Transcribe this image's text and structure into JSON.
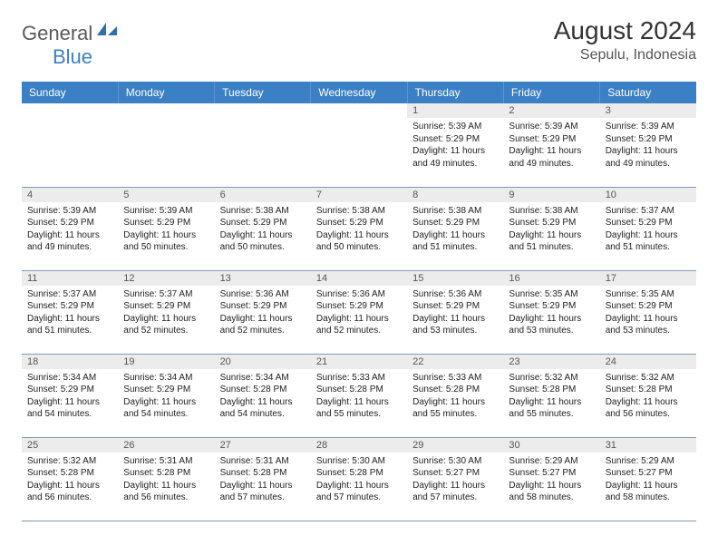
{
  "brand": {
    "part1": "General",
    "part2": "Blue"
  },
  "title": "August 2024",
  "location": "Sepulu, Indonesia",
  "colors": {
    "header_bg": "#3b7fc4",
    "header_text": "#ffffff",
    "daynum_bg": "#ececec",
    "row_border": "#7f99b5",
    "logo_gray": "#5a5a5a",
    "logo_blue": "#3b7fc4"
  },
  "weekdays": [
    "Sunday",
    "Monday",
    "Tuesday",
    "Wednesday",
    "Thursday",
    "Friday",
    "Saturday"
  ],
  "grid": [
    [
      {
        "n": "",
        "sr": "",
        "ss": "",
        "dl": ""
      },
      {
        "n": "",
        "sr": "",
        "ss": "",
        "dl": ""
      },
      {
        "n": "",
        "sr": "",
        "ss": "",
        "dl": ""
      },
      {
        "n": "",
        "sr": "",
        "ss": "",
        "dl": ""
      },
      {
        "n": "1",
        "sr": "Sunrise: 5:39 AM",
        "ss": "Sunset: 5:29 PM",
        "dl": "Daylight: 11 hours and 49 minutes."
      },
      {
        "n": "2",
        "sr": "Sunrise: 5:39 AM",
        "ss": "Sunset: 5:29 PM",
        "dl": "Daylight: 11 hours and 49 minutes."
      },
      {
        "n": "3",
        "sr": "Sunrise: 5:39 AM",
        "ss": "Sunset: 5:29 PM",
        "dl": "Daylight: 11 hours and 49 minutes."
      }
    ],
    [
      {
        "n": "4",
        "sr": "Sunrise: 5:39 AM",
        "ss": "Sunset: 5:29 PM",
        "dl": "Daylight: 11 hours and 49 minutes."
      },
      {
        "n": "5",
        "sr": "Sunrise: 5:39 AM",
        "ss": "Sunset: 5:29 PM",
        "dl": "Daylight: 11 hours and 50 minutes."
      },
      {
        "n": "6",
        "sr": "Sunrise: 5:38 AM",
        "ss": "Sunset: 5:29 PM",
        "dl": "Daylight: 11 hours and 50 minutes."
      },
      {
        "n": "7",
        "sr": "Sunrise: 5:38 AM",
        "ss": "Sunset: 5:29 PM",
        "dl": "Daylight: 11 hours and 50 minutes."
      },
      {
        "n": "8",
        "sr": "Sunrise: 5:38 AM",
        "ss": "Sunset: 5:29 PM",
        "dl": "Daylight: 11 hours and 51 minutes."
      },
      {
        "n": "9",
        "sr": "Sunrise: 5:38 AM",
        "ss": "Sunset: 5:29 PM",
        "dl": "Daylight: 11 hours and 51 minutes."
      },
      {
        "n": "10",
        "sr": "Sunrise: 5:37 AM",
        "ss": "Sunset: 5:29 PM",
        "dl": "Daylight: 11 hours and 51 minutes."
      }
    ],
    [
      {
        "n": "11",
        "sr": "Sunrise: 5:37 AM",
        "ss": "Sunset: 5:29 PM",
        "dl": "Daylight: 11 hours and 51 minutes."
      },
      {
        "n": "12",
        "sr": "Sunrise: 5:37 AM",
        "ss": "Sunset: 5:29 PM",
        "dl": "Daylight: 11 hours and 52 minutes."
      },
      {
        "n": "13",
        "sr": "Sunrise: 5:36 AM",
        "ss": "Sunset: 5:29 PM",
        "dl": "Daylight: 11 hours and 52 minutes."
      },
      {
        "n": "14",
        "sr": "Sunrise: 5:36 AM",
        "ss": "Sunset: 5:29 PM",
        "dl": "Daylight: 11 hours and 52 minutes."
      },
      {
        "n": "15",
        "sr": "Sunrise: 5:36 AM",
        "ss": "Sunset: 5:29 PM",
        "dl": "Daylight: 11 hours and 53 minutes."
      },
      {
        "n": "16",
        "sr": "Sunrise: 5:35 AM",
        "ss": "Sunset: 5:29 PM",
        "dl": "Daylight: 11 hours and 53 minutes."
      },
      {
        "n": "17",
        "sr": "Sunrise: 5:35 AM",
        "ss": "Sunset: 5:29 PM",
        "dl": "Daylight: 11 hours and 53 minutes."
      }
    ],
    [
      {
        "n": "18",
        "sr": "Sunrise: 5:34 AM",
        "ss": "Sunset: 5:29 PM",
        "dl": "Daylight: 11 hours and 54 minutes."
      },
      {
        "n": "19",
        "sr": "Sunrise: 5:34 AM",
        "ss": "Sunset: 5:29 PM",
        "dl": "Daylight: 11 hours and 54 minutes."
      },
      {
        "n": "20",
        "sr": "Sunrise: 5:34 AM",
        "ss": "Sunset: 5:28 PM",
        "dl": "Daylight: 11 hours and 54 minutes."
      },
      {
        "n": "21",
        "sr": "Sunrise: 5:33 AM",
        "ss": "Sunset: 5:28 PM",
        "dl": "Daylight: 11 hours and 55 minutes."
      },
      {
        "n": "22",
        "sr": "Sunrise: 5:33 AM",
        "ss": "Sunset: 5:28 PM",
        "dl": "Daylight: 11 hours and 55 minutes."
      },
      {
        "n": "23",
        "sr": "Sunrise: 5:32 AM",
        "ss": "Sunset: 5:28 PM",
        "dl": "Daylight: 11 hours and 55 minutes."
      },
      {
        "n": "24",
        "sr": "Sunrise: 5:32 AM",
        "ss": "Sunset: 5:28 PM",
        "dl": "Daylight: 11 hours and 56 minutes."
      }
    ],
    [
      {
        "n": "25",
        "sr": "Sunrise: 5:32 AM",
        "ss": "Sunset: 5:28 PM",
        "dl": "Daylight: 11 hours and 56 minutes."
      },
      {
        "n": "26",
        "sr": "Sunrise: 5:31 AM",
        "ss": "Sunset: 5:28 PM",
        "dl": "Daylight: 11 hours and 56 minutes."
      },
      {
        "n": "27",
        "sr": "Sunrise: 5:31 AM",
        "ss": "Sunset: 5:28 PM",
        "dl": "Daylight: 11 hours and 57 minutes."
      },
      {
        "n": "28",
        "sr": "Sunrise: 5:30 AM",
        "ss": "Sunset: 5:28 PM",
        "dl": "Daylight: 11 hours and 57 minutes."
      },
      {
        "n": "29",
        "sr": "Sunrise: 5:30 AM",
        "ss": "Sunset: 5:27 PM",
        "dl": "Daylight: 11 hours and 57 minutes."
      },
      {
        "n": "30",
        "sr": "Sunrise: 5:29 AM",
        "ss": "Sunset: 5:27 PM",
        "dl": "Daylight: 11 hours and 58 minutes."
      },
      {
        "n": "31",
        "sr": "Sunrise: 5:29 AM",
        "ss": "Sunset: 5:27 PM",
        "dl": "Daylight: 11 hours and 58 minutes."
      }
    ]
  ]
}
